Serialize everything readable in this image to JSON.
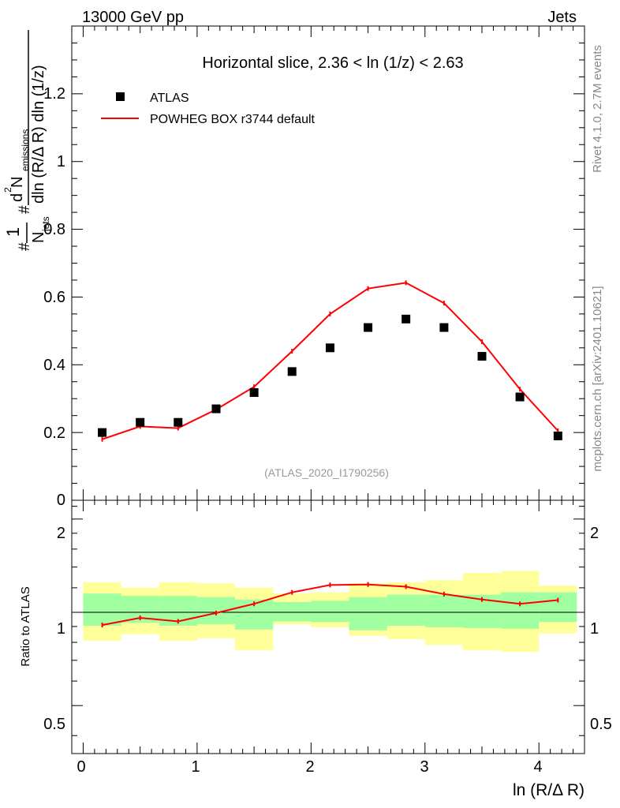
{
  "header": {
    "left": "13000 GeV pp",
    "right": "Jets"
  },
  "side_labels": {
    "rivet": "Rivet 4.1.0,  2.7M events",
    "mcplots": "mcplots.cern.ch [arXiv:2401.10621]"
  },
  "chart_data": {
    "type": "scatter",
    "title": "Horizontal slice, 2.36 < ln (1/z) < 2.63",
    "watermark": "(ATLAS_2020_I1790256)",
    "xlabel": "ln (R/Δ R)",
    "ylabel_main": {
      "prefix": "#",
      "frac1_num": "1",
      "frac1_den": "N",
      "frac1_den_sub": "jets",
      "mid": "#",
      "frac2_num_d": "d",
      "frac2_num_sup": "2",
      "frac2_num_N": " N",
      "frac2_num_sub": "emissions",
      "frac2_den": "dln (R/Δ R) dln (1/z)"
    },
    "ylabel_ratio": "Ratio to ATLAS",
    "xlim": [
      -0.1,
      4.4
    ],
    "ylim_main": [
      0,
      1.4
    ],
    "ylim_ratio": [
      0.35,
      2.3
    ],
    "x_ticks": [
      "0",
      "1",
      "2",
      "3",
      "4"
    ],
    "y_ticks_main": [
      "0",
      "0.2",
      "0.4",
      "0.6",
      "0.8",
      "1",
      "1.2"
    ],
    "y_ticks_ratio": [
      "0.5",
      "1",
      "2"
    ],
    "x": [
      0.167,
      0.5,
      0.833,
      1.167,
      1.5,
      1.833,
      2.167,
      2.5,
      2.833,
      3.167,
      3.5,
      3.833,
      4.167
    ],
    "bin_edges": [
      0,
      0.333,
      0.667,
      1.0,
      1.333,
      1.667,
      2.0,
      2.333,
      2.667,
      3.0,
      3.333,
      3.667,
      4.0,
      4.333
    ],
    "series": [
      {
        "name": "ATLAS",
        "style": "marker",
        "color": "#000000",
        "values": [
          0.2,
          0.23,
          0.23,
          0.27,
          0.318,
          0.38,
          0.45,
          0.51,
          0.535,
          0.51,
          0.425,
          0.305,
          0.19
        ]
      },
      {
        "name": "POWHEG BOX r3744 default",
        "style": "line",
        "color": "#ff0000",
        "values": [
          0.18,
          0.218,
          0.213,
          0.268,
          0.335,
          0.44,
          0.55,
          0.625,
          0.642,
          0.582,
          0.468,
          0.328,
          0.205
        ]
      }
    ],
    "ratio": {
      "values": [
        0.91,
        0.96,
        0.935,
        0.995,
        1.065,
        1.16,
        1.225,
        1.23,
        1.21,
        1.145,
        1.1,
        1.065,
        1.095
      ],
      "band_inner": [
        [
          0.905,
          1.15
        ],
        [
          0.925,
          1.13
        ],
        [
          0.905,
          1.13
        ],
        [
          0.915,
          1.12
        ],
        [
          0.88,
          1.1
        ],
        [
          0.935,
          1.08
        ],
        [
          0.93,
          1.09
        ],
        [
          0.875,
          1.12
        ],
        [
          0.905,
          1.14
        ],
        [
          0.895,
          1.14
        ],
        [
          0.89,
          1.14
        ],
        [
          0.885,
          1.16
        ],
        [
          0.93,
          1.16
        ]
      ],
      "band_outer": [
        [
          0.81,
          1.25
        ],
        [
          0.85,
          1.2
        ],
        [
          0.81,
          1.25
        ],
        [
          0.825,
          1.24
        ],
        [
          0.755,
          1.2
        ],
        [
          0.915,
          1.15
        ],
        [
          0.895,
          1.16
        ],
        [
          0.84,
          1.24
        ],
        [
          0.82,
          1.25
        ],
        [
          0.785,
          1.27
        ],
        [
          0.755,
          1.34
        ],
        [
          0.745,
          1.36
        ],
        [
          0.855,
          1.22
        ]
      ]
    },
    "colors": {
      "band_inner": "#a0ffa0",
      "band_outer": "#ffff99",
      "model": "#ff0000",
      "data": "#000000"
    }
  }
}
